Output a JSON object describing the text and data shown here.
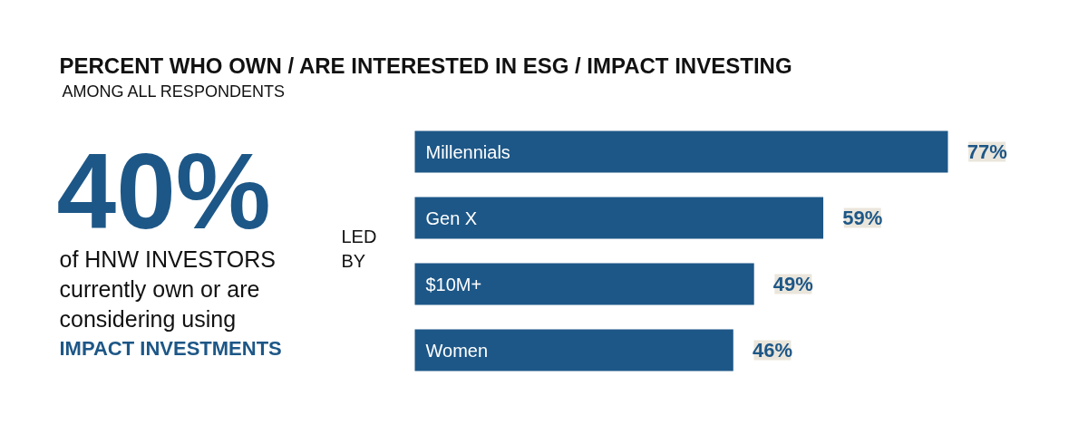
{
  "chart_data": {
    "type": "bar",
    "orientation": "horizontal",
    "title": "PERCENT WHO OWN / ARE INTERESTED IN ESG / IMPACT INVESTING",
    "subtitle": "AMONG ALL RESPONDENTS",
    "categories": [
      "Millennials",
      "Gen X",
      "$10M+",
      "Women"
    ],
    "values": [
      77,
      59,
      49,
      46
    ],
    "value_labels": [
      "77%",
      "59%",
      "49%",
      "46%"
    ],
    "color": "#1d5787",
    "tick_labels": false,
    "grid": false,
    "annotations": [
      "40%",
      "of HNW INVESTORS",
      "currently own or are",
      "considering using",
      "IMPACT INVESTMENTS",
      "LED\nBY"
    ]
  }
}
